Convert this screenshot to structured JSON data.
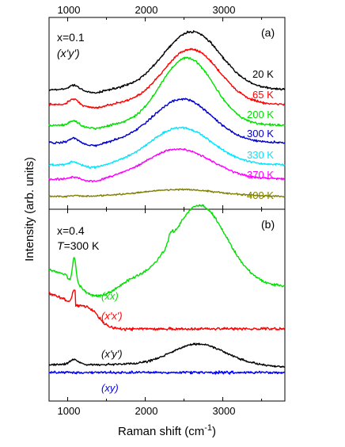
{
  "chart_data": {
    "type": "line",
    "xlabel": "Raman shift (cm",
    "xlabel_sup": "-1",
    "xlabel_end": ")",
    "ylabel": "Intensity (arb. units)",
    "xlim": [
      760,
      3800
    ],
    "xticks": [
      1000,
      2000,
      3000
    ],
    "xtick_labels": [
      "1000",
      "2000",
      "3000"
    ],
    "top_xtick_labels": [
      "1000",
      "2000",
      "3000"
    ],
    "panels": [
      {
        "tag": "(a)",
        "annotation_line1": "x=0.1",
        "annotation_line2": "(x'y')",
        "series": [
          {
            "name": "20 K",
            "color": "#000000",
            "base": 113,
            "amp": 73,
            "center": 2600,
            "width": 370,
            "shoulder": 6,
            "noise": 1.3
          },
          {
            "name": "65 K",
            "color": "#ff0000",
            "base": 132,
            "amp": 70,
            "center": 2590,
            "width": 360,
            "shoulder": 7,
            "noise": 1.3
          },
          {
            "name": "200 K",
            "color": "#00e000",
            "base": 158,
            "amp": 85,
            "center": 2540,
            "width": 340,
            "shoulder": 6,
            "noise": 1.4
          },
          {
            "name": "300 K",
            "color": "#0000cc",
            "base": 180,
            "amp": 55,
            "center": 2480,
            "width": 380,
            "shoulder": 6,
            "noise": 1.3
          },
          {
            "name": "330 K",
            "color": "#00e5ff",
            "base": 208,
            "amp": 47,
            "center": 2460,
            "width": 400,
            "shoulder": 4,
            "noise": 1.3
          },
          {
            "name": "370 K",
            "color": "#ff00ff",
            "base": 226,
            "amp": 38,
            "center": 2430,
            "width": 420,
            "shoulder": 3,
            "noise": 1.2
          },
          {
            "name": "400 K",
            "color": "#808000",
            "base": 248,
            "amp": 9,
            "center": 2450,
            "width": 500,
            "shoulder": 1,
            "noise": 1.0
          }
        ]
      },
      {
        "tag": "(b)",
        "annotation_line1": "x=0.4",
        "annotation_T": "T",
        "annotation_line2": "=300 K",
        "series": [
          {
            "name": "(xx)",
            "color": "#00e000",
            "profile": "xx"
          },
          {
            "name": "(x'x')",
            "color": "#ff0000",
            "profile": "xpxp"
          },
          {
            "name": "(x'y')",
            "color": "#000000",
            "profile": "xpyp"
          },
          {
            "name": "(xy)",
            "color": "#0000ff",
            "profile": "xy"
          }
        ]
      }
    ]
  }
}
